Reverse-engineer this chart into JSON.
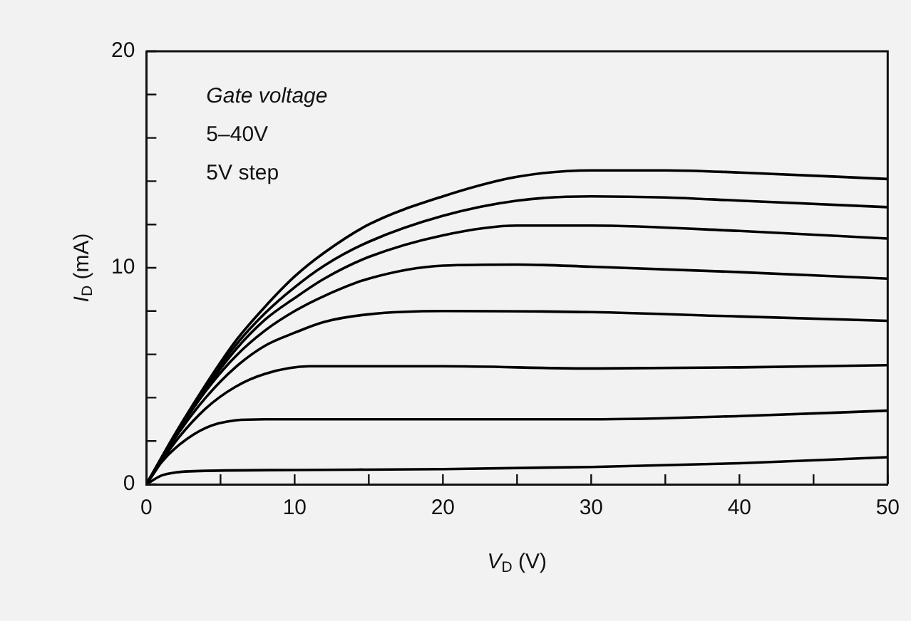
{
  "chart_data": {
    "type": "line",
    "xlabel": "V$_{D}$ (V)",
    "ylabel": "I$_{D}$ (mA)",
    "annotations": [
      "Gate voltage",
      "5–40V",
      "5V step"
    ],
    "xlim": [
      0,
      50
    ],
    "xticks": [
      0,
      {
        "value": 5,
        "label": null
      },
      10,
      {
        "value": 15,
        "label": null
      },
      20,
      {
        "value": 25,
        "label": null
      },
      30,
      {
        "value": 35,
        "label": null
      },
      40,
      {
        "value": 45,
        "label": null
      },
      50
    ],
    "ylim": [
      0,
      20
    ],
    "yticks": [
      0,
      {
        "value": 2,
        "label": null
      },
      {
        "value": 4,
        "label": null
      },
      {
        "value": 6,
        "label": null
      },
      {
        "value": 8,
        "label": null
      },
      10,
      {
        "value": 12,
        "label": null
      },
      {
        "value": 14,
        "label": null
      },
      {
        "value": 16,
        "label": null
      },
      {
        "value": 18,
        "label": null
      },
      20
    ],
    "grid": false,
    "legend": false,
    "marker": "none",
    "line_style": "solid",
    "series": [
      {
        "color": "#000000",
        "x": [
          0,
          1,
          2,
          4,
          10,
          20,
          30,
          40,
          50
        ],
        "values": [
          0,
          0.4,
          0.55,
          0.62,
          0.66,
          0.7,
          0.8,
          0.97,
          1.25
        ]
      },
      {
        "color": "#000000",
        "x": [
          0,
          1,
          2,
          4,
          6,
          8,
          20,
          30,
          40,
          50
        ],
        "values": [
          0,
          1.0,
          1.7,
          2.6,
          2.95,
          3.0,
          3.0,
          3.0,
          3.15,
          3.4
        ]
      },
      {
        "color": "#000000",
        "x": [
          0,
          2,
          4,
          6,
          8,
          11,
          20,
          30,
          40,
          50
        ],
        "values": [
          0,
          2.0,
          3.5,
          4.5,
          5.1,
          5.45,
          5.45,
          5.35,
          5.4,
          5.5
        ]
      },
      {
        "color": "#000000",
        "x": [
          0,
          2,
          4,
          6,
          8,
          10,
          12,
          15,
          20,
          30,
          40,
          50
        ],
        "values": [
          0,
          2.2,
          4.0,
          5.4,
          6.4,
          7.0,
          7.5,
          7.85,
          8.0,
          7.95,
          7.75,
          7.55
        ]
      },
      {
        "color": "#000000",
        "x": [
          0,
          2,
          4,
          6,
          8,
          10,
          12,
          15,
          20,
          25,
          30,
          40,
          50
        ],
        "values": [
          0,
          2.3,
          4.3,
          5.9,
          7.1,
          8.0,
          8.7,
          9.5,
          10.1,
          10.15,
          10.05,
          9.8,
          9.5
        ]
      },
      {
        "color": "#000000",
        "x": [
          0,
          2,
          4,
          6,
          8,
          10,
          12,
          15,
          20,
          25,
          30,
          40,
          50
        ],
        "values": [
          0,
          2.3,
          4.4,
          6.2,
          7.6,
          8.6,
          9.5,
          10.5,
          11.5,
          11.95,
          11.95,
          11.7,
          11.35
        ]
      },
      {
        "color": "#000000",
        "x": [
          0,
          2,
          4,
          6,
          8,
          10,
          12,
          15,
          20,
          25,
          30,
          35,
          40,
          50
        ],
        "values": [
          0,
          2.35,
          4.5,
          6.4,
          7.9,
          9.1,
          10.1,
          11.2,
          12.4,
          13.1,
          13.3,
          13.25,
          13.1,
          12.8
        ]
      },
      {
        "color": "#000000",
        "x": [
          0,
          2,
          4,
          6,
          8,
          10,
          12,
          15,
          20,
          25,
          30,
          35,
          40,
          50
        ],
        "values": [
          0,
          2.4,
          4.6,
          6.6,
          8.2,
          9.6,
          10.7,
          12.0,
          13.3,
          14.2,
          14.5,
          14.5,
          14.4,
          14.1
        ]
      }
    ]
  }
}
